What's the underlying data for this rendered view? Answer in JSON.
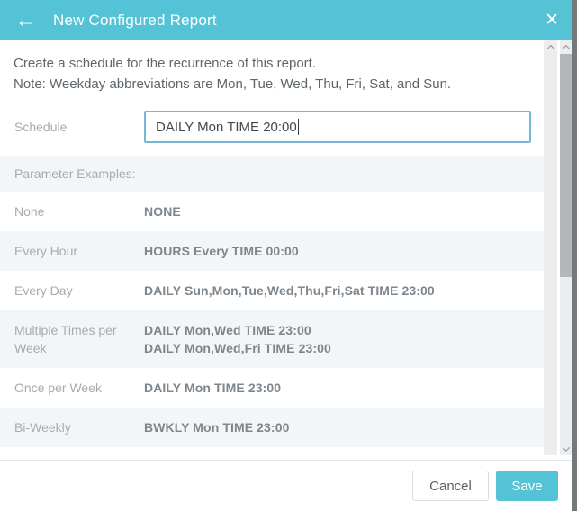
{
  "header": {
    "title": "New Configured Report",
    "back_icon": "←",
    "close_icon": "✕"
  },
  "intro": {
    "line1": "Create a schedule for the recurrence of this report.",
    "line2": "Note: Weekday abbreviations are Mon, Tue, Wed, Thu, Fri, Sat, and Sun."
  },
  "schedule": {
    "label": "Schedule",
    "value": "DAILY Mon TIME 20:00"
  },
  "rows": [
    {
      "label": "Parameter Examples:",
      "values": []
    },
    {
      "label": "None",
      "values": [
        "NONE"
      ]
    },
    {
      "label": "Every Hour",
      "values": [
        "HOURS Every TIME 00:00"
      ]
    },
    {
      "label": "Every Day",
      "values": [
        "DAILY Sun,Mon,Tue,Wed,Thu,Fri,Sat TIME 23:00"
      ]
    },
    {
      "label": "Multiple Times per Week",
      "values": [
        "DAILY Mon,Wed TIME 23:00",
        "DAILY Mon,Wed,Fri TIME 23:00"
      ]
    },
    {
      "label": "Once per Week",
      "values": [
        "DAILY Mon TIME 23:00"
      ]
    },
    {
      "label": "Bi-Weekly",
      "values": [
        "BWKLY Mon TIME 23:00"
      ]
    }
  ],
  "footer": {
    "cancel_label": "Cancel",
    "save_label": "Save"
  },
  "colors": {
    "accent": "#55c3d6",
    "row_shade": "#f2f6f8",
    "input_border": "#74b7d9",
    "strip": "#747a7c"
  }
}
